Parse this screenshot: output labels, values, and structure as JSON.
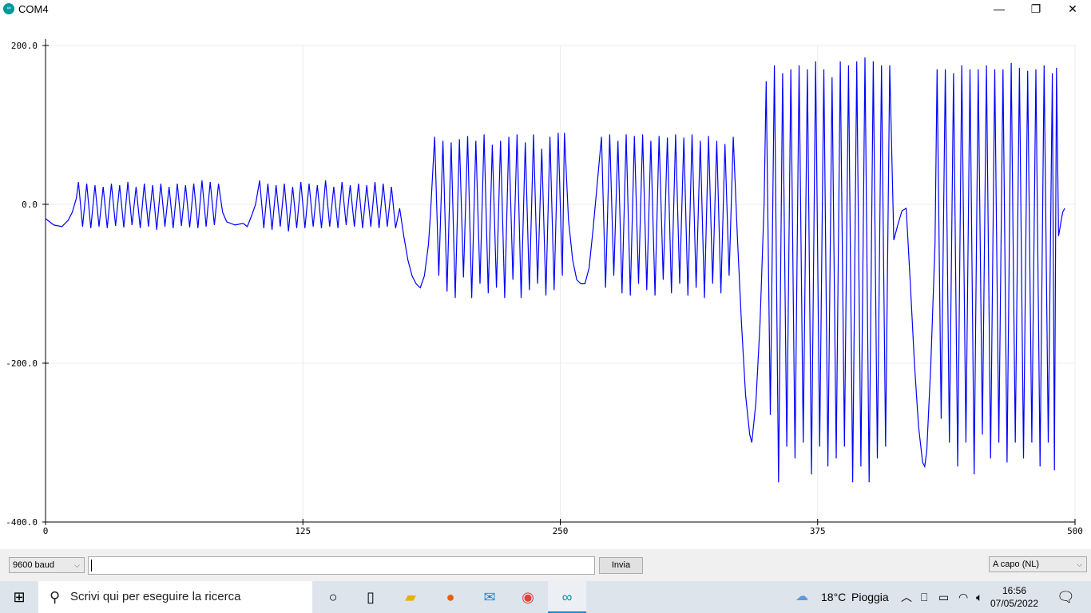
{
  "window": {
    "title": "COM4",
    "minimize": "—",
    "maximize": "❐",
    "close": "✕"
  },
  "chart_data": {
    "type": "line",
    "title": "",
    "xlabel": "",
    "ylabel": "",
    "xlim": [
      0,
      500
    ],
    "ylim": [
      -400,
      200
    ],
    "xticks": [
      "0",
      "125",
      "250",
      "375",
      "500"
    ],
    "yticks": [
      "200.0",
      "0.0",
      "-200.0",
      "-400.0"
    ],
    "grid": true,
    "series": [
      {
        "color": "#0000ff",
        "points": [
          [
            0,
            -18
          ],
          [
            4,
            -26
          ],
          [
            8,
            -28
          ],
          [
            11,
            -20
          ],
          [
            13,
            -10
          ],
          [
            15,
            8
          ],
          [
            16,
            28
          ],
          [
            18,
            -28
          ],
          [
            20,
            26
          ],
          [
            22,
            -30
          ],
          [
            24,
            24
          ],
          [
            26,
            -28
          ],
          [
            28,
            22
          ],
          [
            30,
            -30
          ],
          [
            32,
            26
          ],
          [
            34,
            -27
          ],
          [
            36,
            24
          ],
          [
            38,
            -29
          ],
          [
            40,
            28
          ],
          [
            42,
            -26
          ],
          [
            44,
            22
          ],
          [
            46,
            -30
          ],
          [
            48,
            26
          ],
          [
            50,
            -28
          ],
          [
            52,
            24
          ],
          [
            54,
            -32
          ],
          [
            56,
            26
          ],
          [
            58,
            -28
          ],
          [
            60,
            22
          ],
          [
            62,
            -30
          ],
          [
            64,
            26
          ],
          [
            66,
            -27
          ],
          [
            68,
            24
          ],
          [
            70,
            -29
          ],
          [
            72,
            26
          ],
          [
            74,
            -30
          ],
          [
            76,
            30
          ],
          [
            78,
            -28
          ],
          [
            80,
            28
          ],
          [
            82,
            -26
          ],
          [
            84,
            26
          ],
          [
            86,
            -10
          ],
          [
            88,
            -22
          ],
          [
            92,
            -26
          ],
          [
            96,
            -24
          ],
          [
            98,
            -28
          ],
          [
            100,
            -15
          ],
          [
            102,
            0
          ],
          [
            104,
            30
          ],
          [
            106,
            -30
          ],
          [
            108,
            26
          ],
          [
            110,
            -32
          ],
          [
            112,
            24
          ],
          [
            114,
            -28
          ],
          [
            116,
            26
          ],
          [
            118,
            -34
          ],
          [
            120,
            22
          ],
          [
            122,
            -30
          ],
          [
            124,
            28
          ],
          [
            126,
            -30
          ],
          [
            128,
            26
          ],
          [
            130,
            -28
          ],
          [
            132,
            24
          ],
          [
            134,
            -30
          ],
          [
            136,
            30
          ],
          [
            138,
            -28
          ],
          [
            140,
            22
          ],
          [
            142,
            -30
          ],
          [
            144,
            28
          ],
          [
            146,
            -26
          ],
          [
            148,
            24
          ],
          [
            150,
            -28
          ],
          [
            152,
            26
          ],
          [
            154,
            -30
          ],
          [
            156,
            24
          ],
          [
            158,
            -28
          ],
          [
            160,
            28
          ],
          [
            162,
            -30
          ],
          [
            164,
            26
          ],
          [
            166,
            -28
          ],
          [
            168,
            22
          ],
          [
            170,
            -30
          ],
          [
            172,
            -5
          ],
          [
            174,
            -40
          ],
          [
            176,
            -70
          ],
          [
            178,
            -90
          ],
          [
            180,
            -100
          ],
          [
            182,
            -105
          ],
          [
            184,
            -90
          ],
          [
            186,
            -50
          ],
          [
            187,
            -10
          ],
          [
            189,
            85
          ],
          [
            191,
            -90
          ],
          [
            193,
            80
          ],
          [
            195,
            -110
          ],
          [
            197,
            78
          ],
          [
            199,
            -118
          ],
          [
            201,
            82
          ],
          [
            203,
            -92
          ],
          [
            205,
            86
          ],
          [
            207,
            -118
          ],
          [
            209,
            80
          ],
          [
            211,
            -100
          ],
          [
            213,
            88
          ],
          [
            215,
            -112
          ],
          [
            217,
            75
          ],
          [
            219,
            -105
          ],
          [
            221,
            80
          ],
          [
            223,
            -118
          ],
          [
            225,
            85
          ],
          [
            227,
            -95
          ],
          [
            229,
            88
          ],
          [
            231,
            -118
          ],
          [
            233,
            78
          ],
          [
            235,
            -108
          ],
          [
            237,
            88
          ],
          [
            239,
            -100
          ],
          [
            241,
            70
          ],
          [
            243,
            -115
          ],
          [
            245,
            85
          ],
          [
            247,
            -108
          ],
          [
            249,
            90
          ],
          [
            251,
            -90
          ],
          [
            252,
            90
          ],
          [
            254,
            -20
          ],
          [
            256,
            -70
          ],
          [
            258,
            -95
          ],
          [
            260,
            -100
          ],
          [
            262,
            -100
          ],
          [
            264,
            -80
          ],
          [
            266,
            -30
          ],
          [
            270,
            85
          ],
          [
            272,
            -105
          ],
          [
            274,
            88
          ],
          [
            276,
            -90
          ],
          [
            278,
            80
          ],
          [
            280,
            -112
          ],
          [
            282,
            88
          ],
          [
            284,
            -115
          ],
          [
            286,
            86
          ],
          [
            288,
            -100
          ],
          [
            290,
            88
          ],
          [
            292,
            -108
          ],
          [
            294,
            80
          ],
          [
            296,
            -115
          ],
          [
            298,
            86
          ],
          [
            300,
            -95
          ],
          [
            302,
            84
          ],
          [
            304,
            -112
          ],
          [
            306,
            88
          ],
          [
            308,
            -100
          ],
          [
            310,
            84
          ],
          [
            312,
            -115
          ],
          [
            314,
            88
          ],
          [
            316,
            -105
          ],
          [
            318,
            80
          ],
          [
            320,
            -118
          ],
          [
            322,
            86
          ],
          [
            324,
            -100
          ],
          [
            326,
            80
          ],
          [
            328,
            -112
          ],
          [
            330,
            76
          ],
          [
            332,
            -90
          ],
          [
            334,
            85
          ],
          [
            336,
            -40
          ],
          [
            338,
            -150
          ],
          [
            340,
            -240
          ],
          [
            342,
            -290
          ],
          [
            343,
            -300
          ],
          [
            345,
            -250
          ],
          [
            347,
            -150
          ],
          [
            349,
            0
          ],
          [
            350,
            155
          ],
          [
            352,
            -265
          ],
          [
            354,
            175
          ],
          [
            356,
            -350
          ],
          [
            358,
            165
          ],
          [
            360,
            -305
          ],
          [
            362,
            170
          ],
          [
            364,
            -320
          ],
          [
            366,
            175
          ],
          [
            368,
            -300
          ],
          [
            370,
            170
          ],
          [
            372,
            -340
          ],
          [
            374,
            180
          ],
          [
            376,
            -305
          ],
          [
            378,
            170
          ],
          [
            380,
            -330
          ],
          [
            382,
            160
          ],
          [
            384,
            -320
          ],
          [
            386,
            180
          ],
          [
            388,
            -305
          ],
          [
            390,
            175
          ],
          [
            392,
            -350
          ],
          [
            394,
            180
          ],
          [
            396,
            -330
          ],
          [
            398,
            185
          ],
          [
            400,
            -350
          ],
          [
            402,
            180
          ],
          [
            404,
            -320
          ],
          [
            406,
            175
          ],
          [
            408,
            -305
          ],
          [
            410,
            175
          ],
          [
            412,
            -45
          ],
          [
            414,
            -25
          ],
          [
            416,
            -8
          ],
          [
            418,
            -5
          ],
          [
            420,
            -100
          ],
          [
            422,
            -200
          ],
          [
            424,
            -280
          ],
          [
            426,
            -325
          ],
          [
            427,
            -330
          ],
          [
            428,
            -310
          ],
          [
            430,
            -200
          ],
          [
            432,
            -50
          ],
          [
            433,
            170
          ],
          [
            435,
            -270
          ],
          [
            437,
            170
          ],
          [
            439,
            -300
          ],
          [
            441,
            165
          ],
          [
            443,
            -330
          ],
          [
            445,
            175
          ],
          [
            447,
            -300
          ],
          [
            449,
            170
          ],
          [
            451,
            -340
          ],
          [
            453,
            170
          ],
          [
            455,
            -290
          ],
          [
            457,
            175
          ],
          [
            459,
            -320
          ],
          [
            461,
            170
          ],
          [
            463,
            -300
          ],
          [
            465,
            170
          ],
          [
            467,
            -325
          ],
          [
            469,
            178
          ],
          [
            471,
            -300
          ],
          [
            473,
            172
          ],
          [
            475,
            -320
          ],
          [
            477,
            168
          ],
          [
            479,
            -300
          ],
          [
            481,
            170
          ],
          [
            483,
            -330
          ],
          [
            485,
            175
          ],
          [
            487,
            -300
          ],
          [
            489,
            165
          ],
          [
            490,
            -335
          ],
          [
            491,
            172
          ],
          [
            492,
            -40
          ],
          [
            494,
            -10
          ],
          [
            495,
            -5
          ]
        ]
      }
    ]
  },
  "controls": {
    "baud": "9600 baud",
    "send_input_value": "",
    "send_button": "Invia",
    "line_ending": "A capo (NL)"
  },
  "taskbar": {
    "search_placeholder": "Scrivi qui per eseguire la ricerca",
    "weather_temp": "18°C",
    "weather_text": "Pioggia",
    "time": "16:56",
    "date": "07/05/2022"
  }
}
